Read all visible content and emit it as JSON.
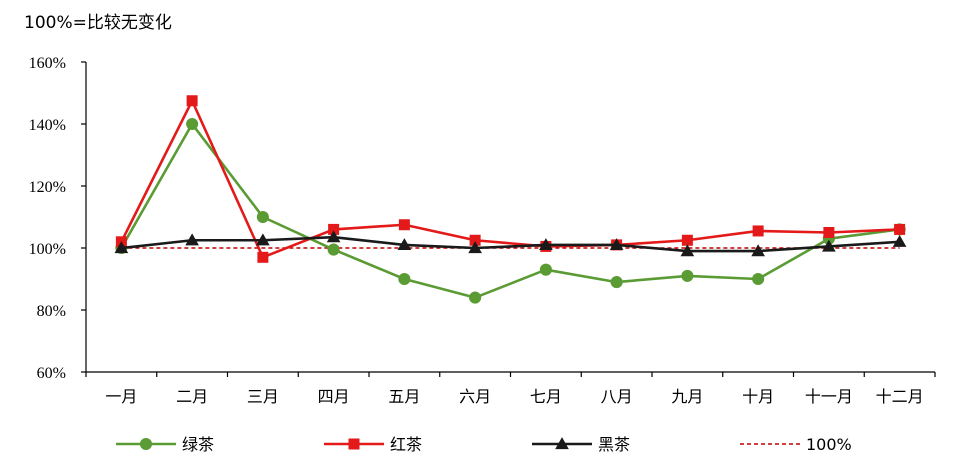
{
  "note": "100%=比较无变化",
  "chart_data": {
    "type": "line",
    "title": "",
    "xlabel": "",
    "ylabel": "",
    "ylim": [
      60,
      160
    ],
    "y_ticks": [
      "60%",
      "80%",
      "100%",
      "120%",
      "140%",
      "160%"
    ],
    "y_unit": "%",
    "categories": [
      "一月",
      "二月",
      "三月",
      "四月",
      "五月",
      "六月",
      "七月",
      "八月",
      "九月",
      "十月",
      "十一月",
      "十二月"
    ],
    "series": [
      {
        "name": "绿茶",
        "color": "#5a9b34",
        "marker": "circle",
        "values": [
          100,
          140,
          110,
          99.5,
          90,
          84,
          93,
          89,
          91,
          90,
          103,
          106
        ]
      },
      {
        "name": "红茶",
        "color": "#e41a1a",
        "marker": "square",
        "values": [
          102,
          147.5,
          97,
          106,
          107.5,
          102.5,
          100.5,
          101,
          102.5,
          105.5,
          105,
          106
        ]
      },
      {
        "name": "黑茶",
        "color": "#1a1a1a",
        "marker": "triangle",
        "values": [
          100,
          102.5,
          102.5,
          103.5,
          101,
          100,
          101,
          101,
          99,
          99,
          100.5,
          102
        ]
      }
    ],
    "reference_line": {
      "name": "100%",
      "value": 100,
      "color": "#c00000",
      "style": "dashed"
    },
    "legend_position": "bottom",
    "grid": false
  }
}
